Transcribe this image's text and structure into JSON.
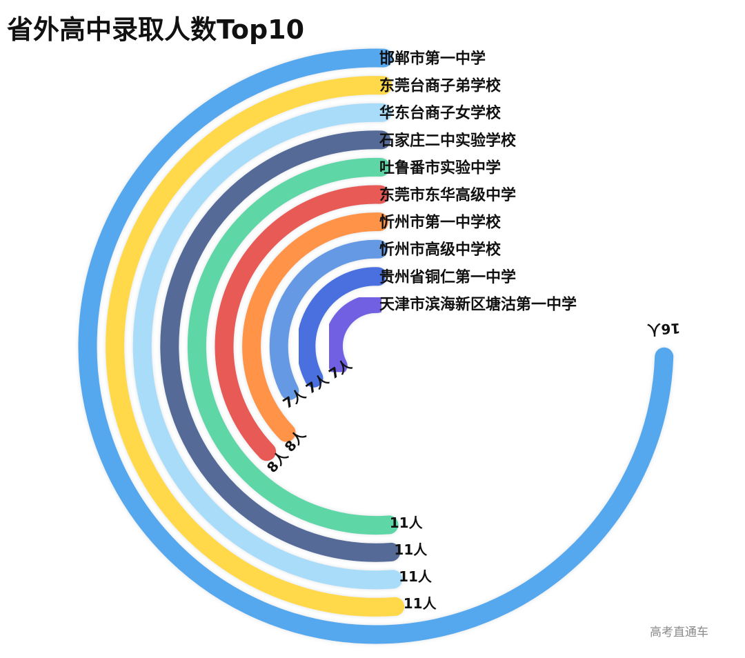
{
  "title": "省外高中录取人数Top10",
  "watermark": "高考直通车",
  "chart_data": {
    "type": "radial-bar",
    "title": "省外高中录取人数Top10",
    "unit": "人",
    "angle_max": 21.5,
    "start_angle": "top, counter-clockwise",
    "categories": [
      "邯郸市第一中学",
      "东莞台商子弟学校",
      "华东台商子女学校",
      "石家庄二中实验学校",
      "吐鲁番市实验中学",
      "东莞市东华高级中学",
      "忻州市第一中学校",
      "忻州市高级中学校",
      "贵州省铜仁第一中学",
      "天津市滨海新区塘沽第一中学"
    ],
    "values": [
      16,
      11,
      11,
      11,
      11,
      8,
      8,
      7,
      7,
      7
    ],
    "value_labels": [
      "16人",
      "11人",
      "11人",
      "11人",
      "11人",
      "8人",
      "8人",
      "7人",
      "7人",
      "7人"
    ],
    "colors": [
      "#55A7EE",
      "#FFD94A",
      "#A9DCF8",
      "#556A96",
      "#5ED6A6",
      "#E85A55",
      "#FF9347",
      "#6699E3",
      "#4A70DE",
      "#7260E3"
    ],
    "legend_position": "right of rings, aligned at top"
  }
}
